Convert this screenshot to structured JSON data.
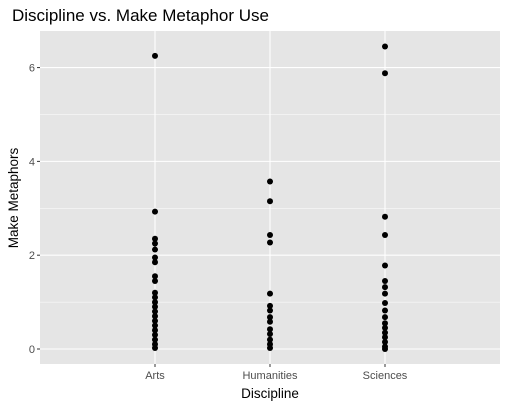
{
  "chart_data": {
    "type": "scatter",
    "title": "Discipline vs. Make Metaphor Use",
    "xlabel": "Discipline",
    "ylabel": "Make Metaphors",
    "categories": [
      "Arts",
      "Humanities",
      "Sciences"
    ],
    "y_ticks": [
      0,
      2,
      4,
      6
    ],
    "y_tick_labels": [
      "0",
      "2",
      "4",
      "6"
    ],
    "ylim": [
      -0.32,
      6.78
    ],
    "grid": true,
    "legend": "none",
    "colors": {
      "panel": "#e5e5e5",
      "grid_major": "#ffffff",
      "point": "#000000",
      "tick_text": "#4d4d4d"
    },
    "points": [
      {
        "x": "Arts",
        "y": 6.25
      },
      {
        "x": "Arts",
        "y": 2.93
      },
      {
        "x": "Arts",
        "y": 2.35
      },
      {
        "x": "Arts",
        "y": 2.25
      },
      {
        "x": "Arts",
        "y": 2.12
      },
      {
        "x": "Arts",
        "y": 1.95
      },
      {
        "x": "Arts",
        "y": 1.85
      },
      {
        "x": "Arts",
        "y": 1.55
      },
      {
        "x": "Arts",
        "y": 1.45
      },
      {
        "x": "Arts",
        "y": 1.2
      },
      {
        "x": "Arts",
        "y": 1.1
      },
      {
        "x": "Arts",
        "y": 1.0
      },
      {
        "x": "Arts",
        "y": 0.9
      },
      {
        "x": "Arts",
        "y": 0.8
      },
      {
        "x": "Arts",
        "y": 0.7
      },
      {
        "x": "Arts",
        "y": 0.6
      },
      {
        "x": "Arts",
        "y": 0.5
      },
      {
        "x": "Arts",
        "y": 0.4
      },
      {
        "x": "Arts",
        "y": 0.3
      },
      {
        "x": "Arts",
        "y": 0.2
      },
      {
        "x": "Arts",
        "y": 0.1
      },
      {
        "x": "Arts",
        "y": 0.02
      },
      {
        "x": "Humanities",
        "y": 3.57
      },
      {
        "x": "Humanities",
        "y": 3.15
      },
      {
        "x": "Humanities",
        "y": 2.43
      },
      {
        "x": "Humanities",
        "y": 2.27
      },
      {
        "x": "Humanities",
        "y": 1.18
      },
      {
        "x": "Humanities",
        "y": 0.92
      },
      {
        "x": "Humanities",
        "y": 0.82
      },
      {
        "x": "Humanities",
        "y": 0.68
      },
      {
        "x": "Humanities",
        "y": 0.58
      },
      {
        "x": "Humanities",
        "y": 0.42
      },
      {
        "x": "Humanities",
        "y": 0.32
      },
      {
        "x": "Humanities",
        "y": 0.2
      },
      {
        "x": "Humanities",
        "y": 0.1
      },
      {
        "x": "Humanities",
        "y": 0.02
      },
      {
        "x": "Sciences",
        "y": 6.45
      },
      {
        "x": "Sciences",
        "y": 5.88
      },
      {
        "x": "Sciences",
        "y": 2.82
      },
      {
        "x": "Sciences",
        "y": 2.43
      },
      {
        "x": "Sciences",
        "y": 1.78
      },
      {
        "x": "Sciences",
        "y": 1.45
      },
      {
        "x": "Sciences",
        "y": 1.32
      },
      {
        "x": "Sciences",
        "y": 1.18
      },
      {
        "x": "Sciences",
        "y": 0.98
      },
      {
        "x": "Sciences",
        "y": 0.82
      },
      {
        "x": "Sciences",
        "y": 0.68
      },
      {
        "x": "Sciences",
        "y": 0.55
      },
      {
        "x": "Sciences",
        "y": 0.45
      },
      {
        "x": "Sciences",
        "y": 0.35
      },
      {
        "x": "Sciences",
        "y": 0.25
      },
      {
        "x": "Sciences",
        "y": 0.15
      },
      {
        "x": "Sciences",
        "y": 0.05
      },
      {
        "x": "Sciences",
        "y": 0.0
      }
    ]
  }
}
